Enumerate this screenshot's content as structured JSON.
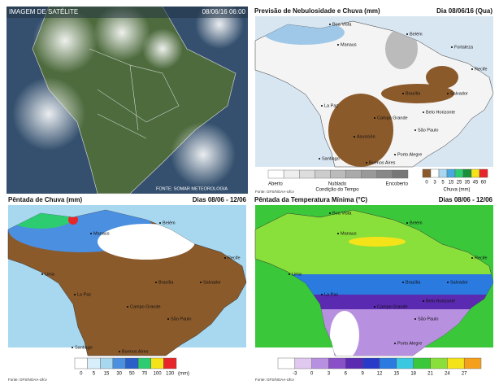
{
  "satellite": {
    "title": "IMAGEM DE SATÉLITE",
    "time": "08/06/16 06:00",
    "source": "FONTE: SOMAR METEOROLOGIA"
  },
  "cloud_rain": {
    "title": "Previsão de Nebulosidade e Chuva (mm)",
    "date": "Dia 08/06/16 (Qua)",
    "cities": [
      "Boa Vista",
      "Manaus",
      "Belém",
      "Fortaleza",
      "Recife",
      "Salvador",
      "Brasília",
      "Belo Horizonte",
      "Campo Grande",
      "São Paulo",
      "Asunción",
      "Porto Alegre",
      "Buenos Aires",
      "La Paz",
      "Santiago"
    ],
    "cloud_legend": {
      "left": "Aberto",
      "middle": "Nublado",
      "right": "Encoberto",
      "caption": "Condição do Tempo",
      "colors": [
        "#ffffff",
        "#eeeeee",
        "#dddddd",
        "#cccccc",
        "#bbbbbb",
        "#aaaaaa",
        "#999999",
        "#888888",
        "#777777"
      ]
    },
    "rain_legend": {
      "labels": [
        0,
        3,
        5,
        15,
        25,
        35,
        45,
        60
      ],
      "colors": [
        "#8b5a2b",
        "#ffffff",
        "#a8d8f0",
        "#4aa8e0",
        "#2ecc71",
        "#1a8f3a",
        "#f5e31a",
        "#e8262a"
      ],
      "caption": "Chuva (mm)"
    },
    "source": "Fonte: GFS/NOAA-Ufcv"
  },
  "rain_pentad": {
    "title": "Pêntada de Chuva (mm)",
    "date": "Dias 08/06 - 12/06",
    "cities": [
      "Manaus",
      "Belém",
      "Recife",
      "Salvador",
      "Brasília",
      "Campo Grande",
      "São Paulo",
      "La Paz",
      "Buenos Aires",
      "Santiago",
      "Lima"
    ],
    "legend": {
      "labels": [
        0,
        5,
        15,
        30,
        50,
        70,
        100,
        130
      ],
      "unit": "(mm)",
      "colors": [
        "#ffffff",
        "#d8eefa",
        "#a8d8f0",
        "#4a8fe0",
        "#2a5fc8",
        "#2ecc71",
        "#f5e31a",
        "#e8262a"
      ]
    },
    "source": "Fonte: GFS/NOAA-Ufcv"
  },
  "temp_pentad": {
    "title": "Pêntada da Temperatura Mínima (°C)",
    "date": "Dias 08/06 - 12/06",
    "cities": [
      "Boa Vista",
      "Manaus",
      "Belém",
      "Recife",
      "Salvador",
      "Brasília",
      "Belo Horizonte",
      "Campo Grande",
      "São Paulo",
      "Porto Alegre",
      "Lima",
      "La Paz"
    ],
    "legend": {
      "labels": [
        -3,
        0,
        3,
        6,
        9,
        12,
        15,
        18,
        21,
        24,
        27
      ],
      "colors": [
        "#ffffff",
        "#e0c8f0",
        "#b890e0",
        "#8a50c8",
        "#5a2ab0",
        "#2a3ac8",
        "#2a7ae0",
        "#3ac8e0",
        "#3ac83a",
        "#8ae03a",
        "#f5e31a",
        "#f5a01a"
      ]
    },
    "source": "Fonte: GFS/NOAA-Ufcv"
  }
}
